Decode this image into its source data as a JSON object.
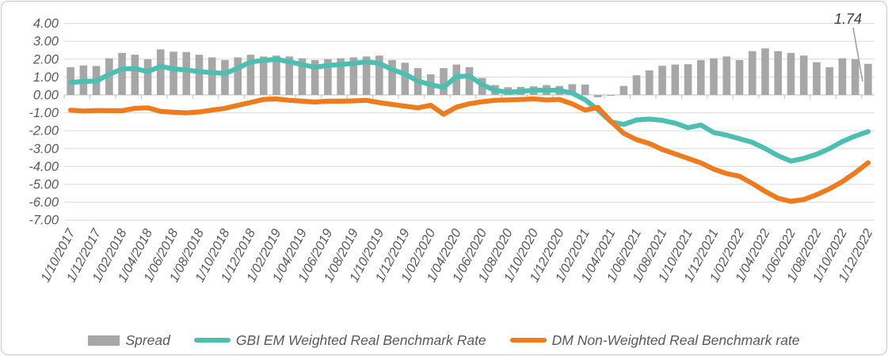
{
  "window": {
    "background": "#ffffff",
    "border_color": "#c9c9c9"
  },
  "colors": {
    "bar": "#a7a7a7",
    "gbi_em_line": "#4dbfb0",
    "dm_line": "#ee7c1e",
    "gridline": "#d9d9d9",
    "zero_axis": "#bfbfbf",
    "axis_label_text": "#595959",
    "annotation_text": "#3f3f3f",
    "leader_line": "#a0a0a0"
  },
  "chart_data": {
    "type": "combo_bar_line",
    "title": "",
    "n_points": 63,
    "ylim": [
      -7,
      4
    ],
    "grid": true,
    "legend_position": "bottom",
    "y_tick_labels": [
      "4.00",
      "3.00",
      "2.00",
      "1.00",
      "0.00",
      "-1.00",
      "-2.00",
      "-3.00",
      "-4.00",
      "-5.00",
      "-6.00",
      "-7.00"
    ],
    "x_tick_labels": [
      "1/10/2017",
      "1/12/2017",
      "1/02/2018",
      "1/04/2018",
      "1/06/2018",
      "1/08/2018",
      "1/10/2018",
      "1/12/2018",
      "1/02/2019",
      "1/04/2019",
      "1/06/2019",
      "1/08/2019",
      "1/10/2019",
      "1/12/2019",
      "1/02/2020",
      "1/04/2020",
      "1/06/2020",
      "1/08/2020",
      "1/10/2020",
      "1/12/2020",
      "1/02/2021",
      "1/04/2021",
      "1/06/2021",
      "1/08/2021",
      "1/10/2021",
      "1/12/2021",
      "1/02/2022",
      "1/04/2022",
      "1/06/2022",
      "1/08/2022",
      "1/10/2022",
      "1/12/2022"
    ],
    "x_label_every_n_points": 2,
    "annotation": {
      "text": "1.74",
      "series": "Spread",
      "point": "1/12/2022"
    },
    "series": [
      {
        "name": "Spread",
        "type": "bar",
        "color": "#a7a7a7",
        "values": [
          1.55,
          1.65,
          1.62,
          2.05,
          2.35,
          2.25,
          2.0,
          2.55,
          2.42,
          2.4,
          2.25,
          2.1,
          1.95,
          2.1,
          2.25,
          2.15,
          2.2,
          2.15,
          2.05,
          1.95,
          2.0,
          2.05,
          2.1,
          2.15,
          2.2,
          1.95,
          1.8,
          1.5,
          1.15,
          1.5,
          1.7,
          1.55,
          0.95,
          0.55,
          0.43,
          0.45,
          0.48,
          0.55,
          0.5,
          0.6,
          0.58,
          -0.13,
          -0.05,
          0.5,
          1.1,
          1.37,
          1.63,
          1.7,
          1.72,
          1.95,
          2.05,
          2.15,
          1.95,
          2.45,
          2.6,
          2.45,
          2.35,
          2.2,
          1.83,
          1.55,
          2.05,
          2.0,
          1.74
        ]
      },
      {
        "name": "GBI EM Weighted Real Benchmark Rate",
        "type": "line",
        "color": "#4dbfb0",
        "values": [
          0.7,
          0.75,
          0.78,
          1.15,
          1.45,
          1.48,
          1.3,
          1.6,
          1.45,
          1.4,
          1.3,
          1.25,
          1.2,
          1.5,
          1.85,
          1.93,
          2.0,
          1.85,
          1.7,
          1.55,
          1.65,
          1.7,
          1.77,
          1.85,
          1.77,
          1.42,
          1.17,
          0.78,
          0.57,
          0.42,
          1.02,
          1.06,
          0.57,
          0.25,
          0.15,
          0.2,
          0.26,
          0.27,
          0.25,
          0.1,
          -0.27,
          -0.83,
          -1.5,
          -1.65,
          -1.4,
          -1.35,
          -1.42,
          -1.58,
          -1.83,
          -1.68,
          -2.1,
          -2.25,
          -2.45,
          -2.65,
          -3.0,
          -3.4,
          -3.7,
          -3.55,
          -3.32,
          -3.0,
          -2.6,
          -2.3,
          -2.05
        ]
      },
      {
        "name": "DM Non-Weighted Real Benchmark rate",
        "type": "line",
        "color": "#ee7c1e",
        "values": [
          -0.85,
          -0.9,
          -0.87,
          -0.88,
          -0.88,
          -0.75,
          -0.72,
          -0.92,
          -0.97,
          -1.0,
          -0.95,
          -0.85,
          -0.75,
          -0.58,
          -0.42,
          -0.25,
          -0.22,
          -0.3,
          -0.35,
          -0.4,
          -0.35,
          -0.35,
          -0.33,
          -0.3,
          -0.43,
          -0.53,
          -0.63,
          -0.72,
          -0.58,
          -1.08,
          -0.68,
          -0.49,
          -0.38,
          -0.3,
          -0.28,
          -0.25,
          -0.22,
          -0.28,
          -0.25,
          -0.5,
          -0.85,
          -0.7,
          -1.47,
          -2.15,
          -2.5,
          -2.72,
          -3.05,
          -3.3,
          -3.55,
          -3.8,
          -4.15,
          -4.4,
          -4.55,
          -4.95,
          -5.4,
          -5.78,
          -5.95,
          -5.85,
          -5.58,
          -5.25,
          -4.85,
          -4.35,
          -3.79
        ]
      }
    ]
  }
}
